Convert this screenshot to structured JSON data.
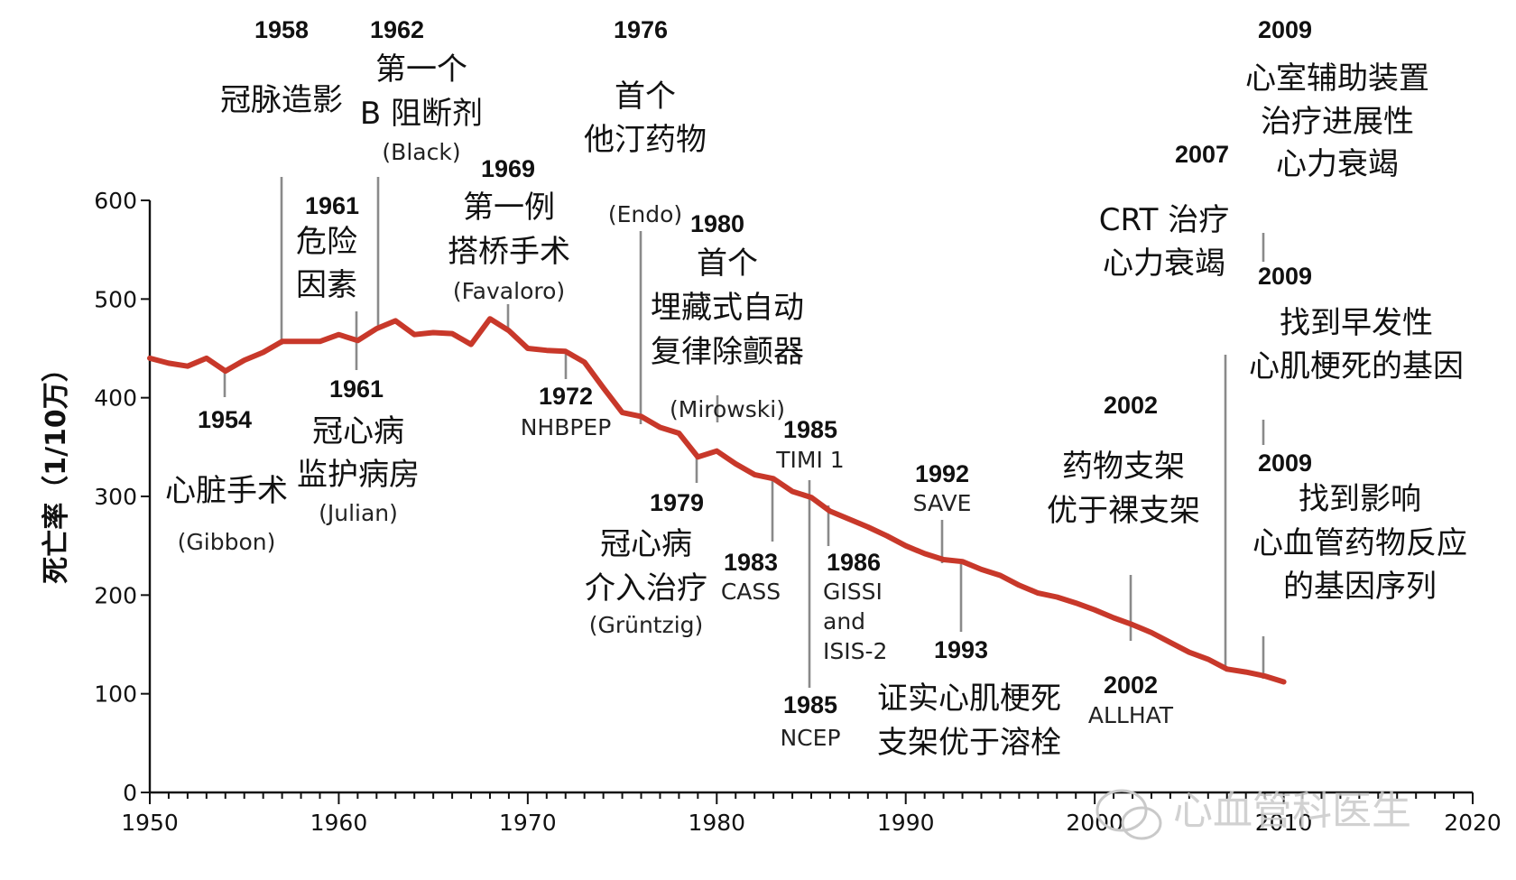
{
  "chart_data": {
    "type": "line",
    "title": "",
    "xlabel": "",
    "ylabel": "死亡率（1/10万）",
    "xlim": [
      1950,
      2020
    ],
    "ylim": [
      0,
      600
    ],
    "xticks": [
      1950,
      1960,
      1970,
      1980,
      1990,
      2000,
      2010,
      2020
    ],
    "yticks": [
      0,
      100,
      200,
      300,
      400,
      500,
      600
    ],
    "grid": false,
    "series": [
      {
        "name": "mortality",
        "color": "#c8382a",
        "x": [
          1950,
          1951,
          1952,
          1953,
          1954,
          1955,
          1956,
          1957,
          1958,
          1959,
          1960,
          1961,
          1962,
          1963,
          1964,
          1965,
          1966,
          1967,
          1968,
          1969,
          1970,
          1971,
          1972,
          1973,
          1974,
          1975,
          1976,
          1977,
          1978,
          1979,
          1980,
          1981,
          1982,
          1983,
          1984,
          1985,
          1986,
          1987,
          1988,
          1989,
          1990,
          1991,
          1992,
          1993,
          1994,
          1995,
          1996,
          1997,
          1998,
          1999,
          2000,
          2001,
          2002,
          2003,
          2004,
          2005,
          2006,
          2007,
          2008,
          2009,
          2010
        ],
        "values": [
          440,
          435,
          432,
          440,
          427,
          438,
          446,
          457,
          457,
          457,
          464,
          458,
          470,
          478,
          464,
          466,
          465,
          454,
          480,
          468,
          450,
          448,
          447,
          436,
          410,
          385,
          381,
          370,
          364,
          340,
          346,
          333,
          322,
          318,
          305,
          299,
          285,
          277,
          269,
          260,
          250,
          242,
          236,
          234,
          226,
          220,
          210,
          202,
          198,
          192,
          185,
          177,
          170,
          162,
          152,
          142,
          135,
          125,
          122,
          118,
          112
        ]
      }
    ],
    "annotations": [
      {
        "id": "a1958",
        "year": "1958",
        "zh": [
          "冠脉造影"
        ],
        "en": ""
      },
      {
        "id": "a1962",
        "year": "1962",
        "zh": [
          "第一个",
          "Β 阻断剂"
        ],
        "en": "(Black)"
      },
      {
        "id": "a1976",
        "year": "1976",
        "zh": [
          "首个",
          "他汀药物"
        ],
        "en": "(Endo)"
      },
      {
        "id": "a1961a",
        "year": "1961",
        "zh": [
          "危险",
          "因素"
        ],
        "en": ""
      },
      {
        "id": "a1969",
        "year": "1969",
        "zh": [
          "第一例",
          "搭桥手术"
        ],
        "en": "(Favaloro)"
      },
      {
        "id": "a1980",
        "year": "1980",
        "zh": [
          "首个",
          "埋藏式自动",
          "复律除颤器"
        ],
        "en": "(Mirowski)"
      },
      {
        "id": "a1954",
        "year": "1954",
        "zh": [
          "心脏手术"
        ],
        "en": "(Gibbon)"
      },
      {
        "id": "a1961b",
        "year": "1961",
        "zh": [
          "冠心病",
          "监护病房"
        ],
        "en": "(Julian)"
      },
      {
        "id": "a1972",
        "year": "1972",
        "zh": [],
        "en": "NHBPEP"
      },
      {
        "id": "a1979",
        "year": "1979",
        "zh": [
          "冠心病",
          "介入治疗"
        ],
        "en": "(Grüntzig)"
      },
      {
        "id": "a1983",
        "year": "1983",
        "zh": [],
        "en": "CASS"
      },
      {
        "id": "a1985a",
        "year": "1985",
        "zh": [],
        "en": "TIMI 1"
      },
      {
        "id": "a1985b",
        "year": "1985",
        "zh": [],
        "en": "NCEP"
      },
      {
        "id": "a1986",
        "year": "1986",
        "zh": [],
        "en": [
          "GISSI",
          "and",
          "ISIS-2"
        ]
      },
      {
        "id": "a1992",
        "year": "1992",
        "zh": [],
        "en": "SAVE"
      },
      {
        "id": "a1993",
        "year": "1993",
        "zh": [
          "证实心肌梗死",
          "支架优于溶栓"
        ],
        "en": ""
      },
      {
        "id": "a2002a",
        "year": "2002",
        "zh": [
          "药物支架",
          "优于裸支架"
        ],
        "en": ""
      },
      {
        "id": "a2002b",
        "year": "2002",
        "zh": [],
        "en": "ALLHAT"
      },
      {
        "id": "a2007",
        "year": "2007",
        "zh": [
          "CRT 治疗",
          "心力衰竭"
        ],
        "en": ""
      },
      {
        "id": "a2009a",
        "year": "2009",
        "zh": [
          "心室辅助装置",
          "治疗进展性",
          "心力衰竭"
        ],
        "en": ""
      },
      {
        "id": "a2009b",
        "year": "2009",
        "zh": [
          "找到早发性",
          "心肌梗死的基因"
        ],
        "en": ""
      },
      {
        "id": "a2009c",
        "year": "2009",
        "zh": [
          "找到影响",
          "心血管药物反应",
          "的基因序列"
        ],
        "en": ""
      }
    ],
    "watermark": "心血管科医生"
  }
}
